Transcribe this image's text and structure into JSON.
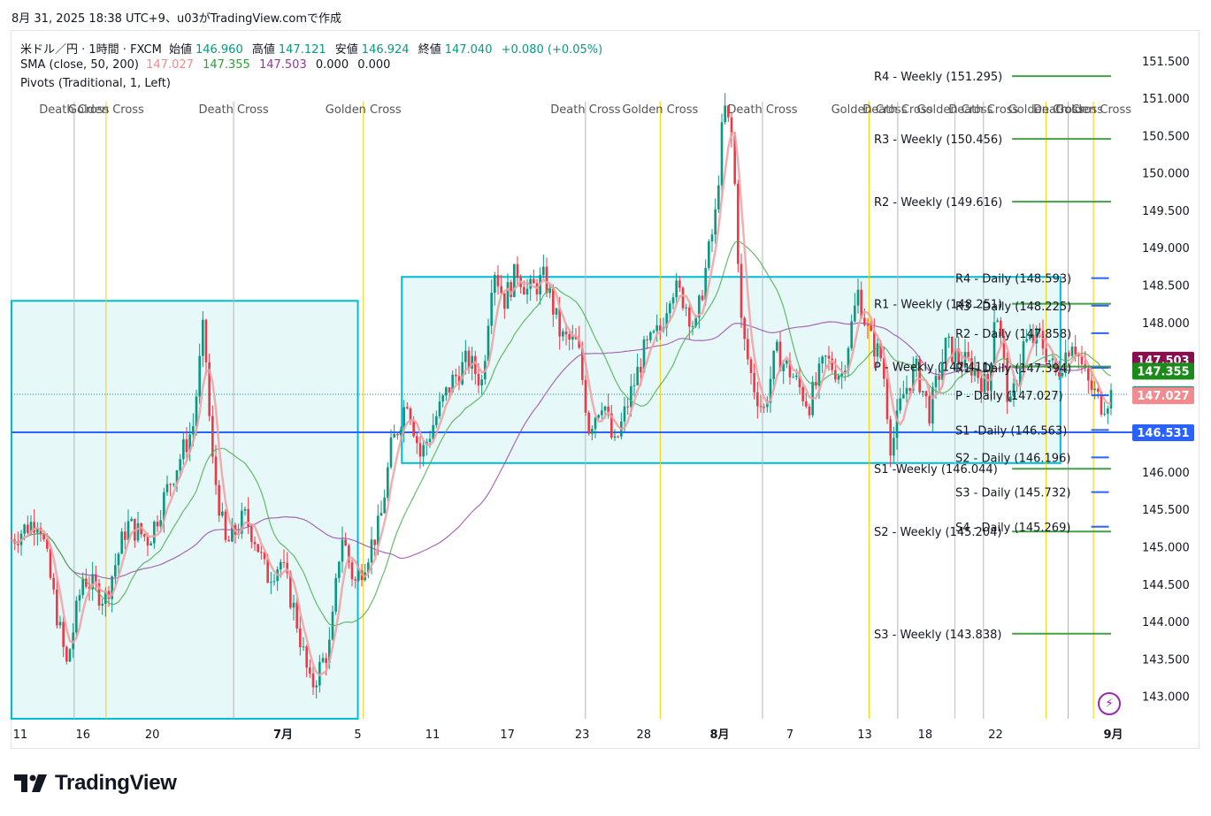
{
  "header": {
    "snapshot_line": "8月 31, 2025 18:38 UTC+9、u03がTradingView.comで作成"
  },
  "legend": {
    "symbol": "米ドル／円 · 1時間 · FXCM",
    "open_label": "始値",
    "open": "146.960",
    "high_label": "高値",
    "high": "147.121",
    "low_label": "安値",
    "low": "146.924",
    "close_label": "終値",
    "close": "147.040",
    "change": "+0.080 (+0.05%)",
    "sma_label": "SMA (close, 50, 200)",
    "sma_v1": "147.027",
    "sma_v2": "147.355",
    "sma_v3": "147.503",
    "sma_v4": "0.000",
    "sma_v5": "0.000",
    "pivots_label": "Pivots (Traditional, 1, Left)"
  },
  "colors": {
    "up": "#089981",
    "down": "#f23645",
    "sma_fast": "#f0a0a3",
    "sma_mid": "#4caf50",
    "sma_slow": "#9c4fa8",
    "cross_yellow": "#f5d000",
    "cross_gray": "#b2b5be",
    "box": "#00bcd4",
    "box_fill": "#e6f8f8",
    "weekly_pivot": "#43a047",
    "daily_pivot": "#2962ff",
    "hline": "#2962ff"
  },
  "footer": {
    "brand": "TradingView",
    "icon": "lightning-icon"
  },
  "chart_data": {
    "type": "candlestick",
    "y_range": [
      142.7,
      151.9
    ],
    "x_range": [
      0,
      1000
    ],
    "price_ticks": [
      "151.500",
      "151.000",
      "150.500",
      "150.000",
      "149.500",
      "149.000",
      "148.500",
      "148.000",
      "147.500",
      "147.000",
      "146.500",
      "146.000",
      "145.500",
      "145.000",
      "144.500",
      "144.000",
      "143.500",
      "143.000"
    ],
    "time_ticks": [
      {
        "x": 8,
        "label": "11"
      },
      {
        "x": 65,
        "label": "16"
      },
      {
        "x": 128,
        "label": "20"
      },
      {
        "x": 247,
        "label": "7月"
      },
      {
        "x": 315,
        "label": "5"
      },
      {
        "x": 383,
        "label": "11"
      },
      {
        "x": 451,
        "label": "17"
      },
      {
        "x": 519,
        "label": "23"
      },
      {
        "x": 575,
        "label": "28"
      },
      {
        "x": 644,
        "label": "8月"
      },
      {
        "x": 708,
        "label": "7"
      },
      {
        "x": 776,
        "label": "13"
      },
      {
        "x": 831,
        "label": "18"
      },
      {
        "x": 895,
        "label": "22"
      },
      {
        "x": 1002,
        "label": "9月"
      }
    ],
    "cross_markers": [
      {
        "x": 57,
        "type": "death",
        "label": "Death Cross"
      },
      {
        "x": 86,
        "type": "golden",
        "label": "Golden Cross"
      },
      {
        "x": 202,
        "type": "death",
        "label": "Death Cross"
      },
      {
        "x": 320,
        "type": "golden",
        "label": "Golden Cross"
      },
      {
        "x": 522,
        "type": "death",
        "label": "Death Cross"
      },
      {
        "x": 590,
        "type": "golden",
        "label": "Golden Cross"
      },
      {
        "x": 683,
        "type": "death",
        "label": "Death Cross"
      },
      {
        "x": 780,
        "type": "golden",
        "label": "Golden Cross"
      },
      {
        "x": 806,
        "type": "death",
        "label": "Death Cross"
      },
      {
        "x": 858,
        "type": "golden",
        "label": "Golden Cross"
      },
      {
        "x": 884,
        "type": "death",
        "label": "Death Cross"
      },
      {
        "x": 941,
        "type": "golden",
        "label": "Golden Cross"
      },
      {
        "x": 961,
        "type": "death",
        "label": "Death Cross"
      },
      {
        "x": 984,
        "type": "golden",
        "label": "Golden Cross"
      }
    ],
    "range_boxes": [
      {
        "x0": 0,
        "x1": 315,
        "top": 148.29,
        "bottom": 142.7
      },
      {
        "x0": 355,
        "x1": 954,
        "top": 148.61,
        "bottom": 146.12
      }
    ],
    "horizontal_line": {
      "price": 146.531,
      "label": "146.531"
    },
    "current_price_line": {
      "price": 147.04
    },
    "weekly_pivots": [
      {
        "label": "R4 - Weekly (151.295)",
        "price": 151.295
      },
      {
        "label": "R3 - Weekly (150.456)",
        "price": 150.456
      },
      {
        "label": "R2 - Weekly (149.616)",
        "price": 149.616
      },
      {
        "label": "R1 - Weekly (148.251)",
        "price": 148.251
      },
      {
        "label": "P - Weekly (147.411)",
        "price": 147.411
      },
      {
        "label": "S1 -Weekly (146.044)",
        "price": 146.044
      },
      {
        "label": "S2 - Weekly (145.204)",
        "price": 145.204
      },
      {
        "label": "S3 - Weekly (143.838)",
        "price": 143.838
      }
    ],
    "daily_pivots": [
      {
        "label": "R4 - Daily (148.593)",
        "price": 148.593
      },
      {
        "label": "R3 - Daily (148.225)",
        "price": 148.225
      },
      {
        "label": "R2 - Daily (147.858)",
        "price": 147.858
      },
      {
        "label": "R1 - Daily (147.394)",
        "price": 147.394
      },
      {
        "label": "P - Daily (147.027)",
        "price": 147.027
      },
      {
        "label": "S1 -Daily (146.563)",
        "price": 146.563
      },
      {
        "label": "S2 - Daily (146.196)",
        "price": 146.196
      },
      {
        "label": "S3 - Daily (145.732)",
        "price": 145.732
      },
      {
        "label": "S4 - Daily (145.269)",
        "price": 145.269
      }
    ],
    "price_badges": [
      {
        "price": 147.503,
        "label": "147.503",
        "color": "#880e4f"
      },
      {
        "price": 147.355,
        "label": "147.355",
        "color": "#1b8a1b"
      },
      {
        "price": 147.04,
        "label": "147.040",
        "color": "#089981"
      },
      {
        "price": 147.027,
        "label": "147.027",
        "color": "#f28b8f"
      },
      {
        "price": 146.531,
        "label": "146.531",
        "color": "#2962ff"
      }
    ],
    "price_path": [
      {
        "x": 0,
        "p": 145.1
      },
      {
        "x": 25,
        "p": 145.4
      },
      {
        "x": 50,
        "p": 143.4
      },
      {
        "x": 65,
        "p": 144.6
      },
      {
        "x": 85,
        "p": 144.3
      },
      {
        "x": 105,
        "p": 145.3
      },
      {
        "x": 125,
        "p": 145.1
      },
      {
        "x": 145,
        "p": 145.9
      },
      {
        "x": 165,
        "p": 146.6
      },
      {
        "x": 175,
        "p": 148.0
      },
      {
        "x": 182,
        "p": 146.2
      },
      {
        "x": 195,
        "p": 145.0
      },
      {
        "x": 212,
        "p": 145.4
      },
      {
        "x": 222,
        "p": 145.1
      },
      {
        "x": 232,
        "p": 144.6
      },
      {
        "x": 245,
        "p": 144.8
      },
      {
        "x": 258,
        "p": 144.1
      },
      {
        "x": 272,
        "p": 143.1
      },
      {
        "x": 290,
        "p": 143.7
      },
      {
        "x": 300,
        "p": 145.2
      },
      {
        "x": 312,
        "p": 144.5
      },
      {
        "x": 335,
        "p": 145.3
      },
      {
        "x": 345,
        "p": 146.3
      },
      {
        "x": 360,
        "p": 147.0
      },
      {
        "x": 372,
        "p": 146.2
      },
      {
        "x": 385,
        "p": 146.7
      },
      {
        "x": 400,
        "p": 147.2
      },
      {
        "x": 415,
        "p": 147.5
      },
      {
        "x": 428,
        "p": 147.2
      },
      {
        "x": 438,
        "p": 148.8
      },
      {
        "x": 448,
        "p": 148.3
      },
      {
        "x": 460,
        "p": 148.7
      },
      {
        "x": 470,
        "p": 148.4
      },
      {
        "x": 485,
        "p": 148.6
      },
      {
        "x": 500,
        "p": 147.8
      },
      {
        "x": 515,
        "p": 147.7
      },
      {
        "x": 525,
        "p": 146.6
      },
      {
        "x": 538,
        "p": 147.0
      },
      {
        "x": 548,
        "p": 146.3
      },
      {
        "x": 560,
        "p": 146.9
      },
      {
        "x": 575,
        "p": 147.6
      },
      {
        "x": 590,
        "p": 147.9
      },
      {
        "x": 600,
        "p": 148.5
      },
      {
        "x": 612,
        "p": 148.3
      },
      {
        "x": 622,
        "p": 147.9
      },
      {
        "x": 630,
        "p": 148.6
      },
      {
        "x": 640,
        "p": 149.4
      },
      {
        "x": 648,
        "p": 150.9
      },
      {
        "x": 656,
        "p": 150.4
      },
      {
        "x": 664,
        "p": 147.9
      },
      {
        "x": 674,
        "p": 147.2
      },
      {
        "x": 684,
        "p": 146.8
      },
      {
        "x": 695,
        "p": 147.6
      },
      {
        "x": 710,
        "p": 147.3
      },
      {
        "x": 725,
        "p": 146.9
      },
      {
        "x": 740,
        "p": 147.5
      },
      {
        "x": 755,
        "p": 147.3
      },
      {
        "x": 770,
        "p": 148.4
      },
      {
        "x": 780,
        "p": 147.8
      },
      {
        "x": 792,
        "p": 147.5
      },
      {
        "x": 800,
        "p": 146.3
      },
      {
        "x": 810,
        "p": 147.0
      },
      {
        "x": 822,
        "p": 147.4
      },
      {
        "x": 835,
        "p": 146.8
      },
      {
        "x": 850,
        "p": 147.7
      },
      {
        "x": 862,
        "p": 147.5
      },
      {
        "x": 875,
        "p": 147.4
      },
      {
        "x": 888,
        "p": 147.1
      },
      {
        "x": 895,
        "p": 148.3
      },
      {
        "x": 908,
        "p": 146.8
      },
      {
        "x": 920,
        "p": 147.7
      },
      {
        "x": 935,
        "p": 147.8
      },
      {
        "x": 950,
        "p": 147.3
      },
      {
        "x": 965,
        "p": 147.8
      },
      {
        "x": 978,
        "p": 147.2
      },
      {
        "x": 992,
        "p": 146.9
      },
      {
        "x": 1000,
        "p": 147.04
      }
    ]
  }
}
